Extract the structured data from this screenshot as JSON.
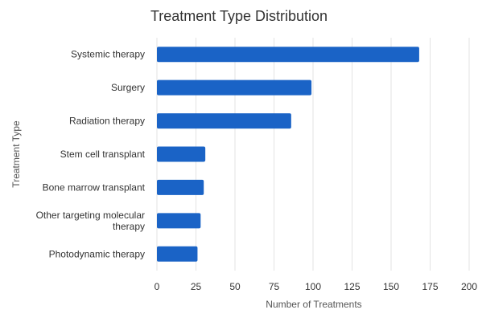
{
  "chart_data": {
    "type": "bar",
    "orientation": "horizontal",
    "title": "Treatment Type Distribution",
    "xlabel": "Number of Treatments",
    "ylabel": "Treatment Type",
    "xlim": [
      0,
      200
    ],
    "xticks": [
      0,
      25,
      50,
      75,
      100,
      125,
      150,
      175,
      200
    ],
    "grid": true,
    "legend": "none",
    "color": "#1a63c6",
    "categories": [
      [
        "Systemic therapy"
      ],
      [
        "Surgery"
      ],
      [
        "Radiation therapy"
      ],
      [
        "Stem cell transplant"
      ],
      [
        "Bone marrow transplant"
      ],
      [
        "Other targeting molecular",
        "therapy"
      ],
      [
        "Photodynamic therapy"
      ]
    ],
    "values": [
      168,
      99,
      86,
      31,
      30,
      28,
      26
    ]
  }
}
